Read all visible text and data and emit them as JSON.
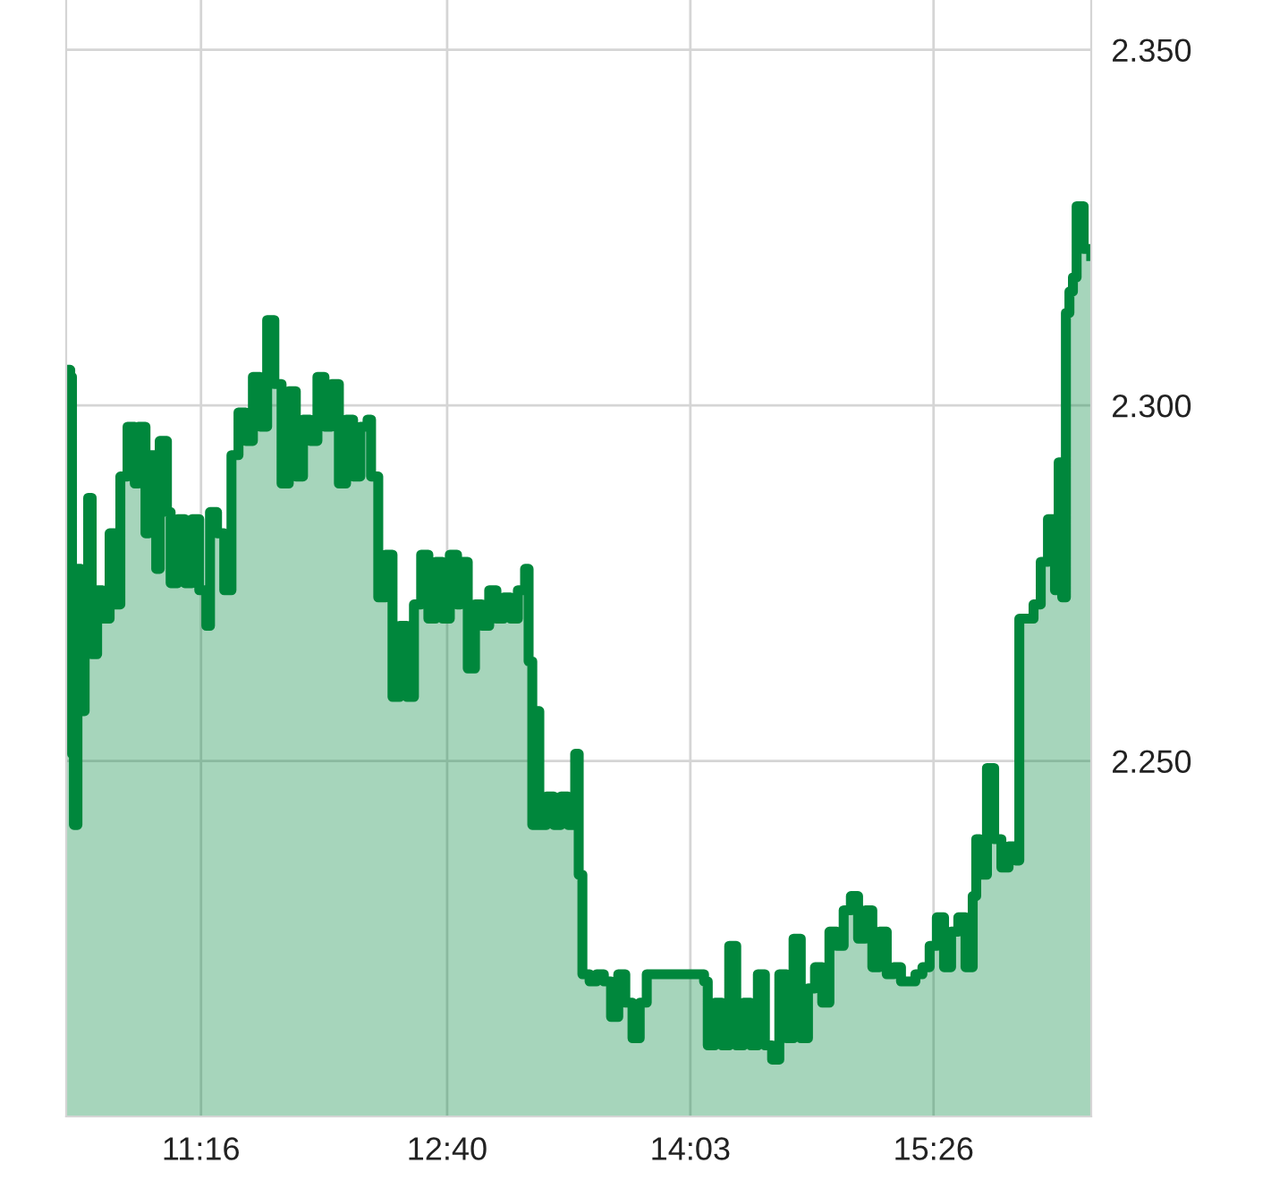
{
  "chart_data": {
    "type": "area",
    "color": "#00873c",
    "grid": true,
    "line_style": "solid",
    "xlim": [
      10.5,
      16.33
    ],
    "ylim": [
      2.2,
      2.357
    ],
    "xticks": [
      {
        "value": 11.2667,
        "label": "11:16"
      },
      {
        "value": 12.6667,
        "label": "12:40"
      },
      {
        "value": 14.05,
        "label": "14:03"
      },
      {
        "value": 15.4333,
        "label": "15:26"
      }
    ],
    "yticks": [
      {
        "value": 2.25,
        "label": "2.250"
      },
      {
        "value": 2.3,
        "label": "2.300"
      },
      {
        "value": 2.35,
        "label": "2.350"
      }
    ],
    "x": [
      10.5,
      10.523,
      10.533,
      10.544,
      10.564,
      10.584,
      10.605,
      10.625,
      10.645,
      10.676,
      10.707,
      10.747,
      10.778,
      10.808,
      10.849,
      10.89,
      10.91,
      10.951,
      10.971,
      11.012,
      11.032,
      11.073,
      11.094,
      11.134,
      11.175,
      11.216,
      11.257,
      11.297,
      11.318,
      11.358,
      11.399,
      11.44,
      11.48,
      11.521,
      11.562,
      11.603,
      11.643,
      11.684,
      11.725,
      11.766,
      11.806,
      11.847,
      11.888,
      11.929,
      11.969,
      12.01,
      12.051,
      12.092,
      12.132,
      12.173,
      12.214,
      12.234,
      12.275,
      12.316,
      12.356,
      12.397,
      12.438,
      12.478,
      12.519,
      12.56,
      12.601,
      12.641,
      12.682,
      12.723,
      12.743,
      12.784,
      12.825,
      12.865,
      12.906,
      12.947,
      12.988,
      13.028,
      13.069,
      13.11,
      13.13,
      13.151,
      13.171,
      13.191,
      13.232,
      13.273,
      13.314,
      13.354,
      13.395,
      13.415,
      13.436,
      13.477,
      13.517,
      13.558,
      13.599,
      13.64,
      13.68,
      13.721,
      13.762,
      13.802,
      13.884,
      13.986,
      14.087,
      14.128,
      14.149,
      14.189,
      14.23,
      14.271,
      14.311,
      14.352,
      14.393,
      14.434,
      14.474,
      14.515,
      14.556,
      14.597,
      14.637,
      14.678,
      14.719,
      14.759,
      14.8,
      14.841,
      14.882,
      14.922,
      14.963,
      15.004,
      15.045,
      15.085,
      15.126,
      15.167,
      15.207,
      15.248,
      15.289,
      15.33,
      15.37,
      15.411,
      15.452,
      15.493,
      15.533,
      15.574,
      15.615,
      15.656,
      15.676,
      15.697,
      15.737,
      15.778,
      15.819,
      15.86,
      15.9,
      15.921,
      15.962,
      16.002,
      16.043,
      16.084,
      16.124,
      16.145,
      16.165,
      16.186,
      16.206,
      16.226,
      16.247,
      16.287,
      16.33
    ],
    "values": [
      2.305,
      2.304,
      2.251,
      2.241,
      2.277,
      2.257,
      2.267,
      2.287,
      2.265,
      2.274,
      2.27,
      2.282,
      2.272,
      2.29,
      2.297,
      2.289,
      2.297,
      2.282,
      2.293,
      2.277,
      2.295,
      2.285,
      2.275,
      2.284,
      2.275,
      2.284,
      2.274,
      2.269,
      2.285,
      2.282,
      2.274,
      2.293,
      2.299,
      2.295,
      2.304,
      2.297,
      2.312,
      2.303,
      2.289,
      2.302,
      2.29,
      2.298,
      2.295,
      2.304,
      2.297,
      2.303,
      2.289,
      2.298,
      2.29,
      2.297,
      2.298,
      2.29,
      2.273,
      2.279,
      2.259,
      2.269,
      2.259,
      2.272,
      2.279,
      2.27,
      2.278,
      2.27,
      2.279,
      2.272,
      2.278,
      2.263,
      2.272,
      2.269,
      2.274,
      2.27,
      2.273,
      2.27,
      2.274,
      2.277,
      2.264,
      2.241,
      2.257,
      2.241,
      2.245,
      2.241,
      2.245,
      2.241,
      2.251,
      2.234,
      2.22,
      2.219,
      2.22,
      2.219,
      2.214,
      2.22,
      2.216,
      2.211,
      2.216,
      2.22,
      2.22,
      2.22,
      2.22,
      2.219,
      2.21,
      2.216,
      2.21,
      2.224,
      2.21,
      2.216,
      2.21,
      2.22,
      2.21,
      2.208,
      2.22,
      2.211,
      2.225,
      2.211,
      2.218,
      2.221,
      2.216,
      2.226,
      2.224,
      2.229,
      2.231,
      2.225,
      2.229,
      2.221,
      2.226,
      2.22,
      2.221,
      2.219,
      2.219,
      2.22,
      2.221,
      2.224,
      2.228,
      2.221,
      2.226,
      2.228,
      2.221,
      2.231,
      2.239,
      2.234,
      2.249,
      2.239,
      2.235,
      2.238,
      2.236,
      2.27,
      2.27,
      2.272,
      2.278,
      2.284,
      2.274,
      2.292,
      2.273,
      2.313,
      2.316,
      2.318,
      2.328,
      2.322,
      2.321
    ]
  }
}
